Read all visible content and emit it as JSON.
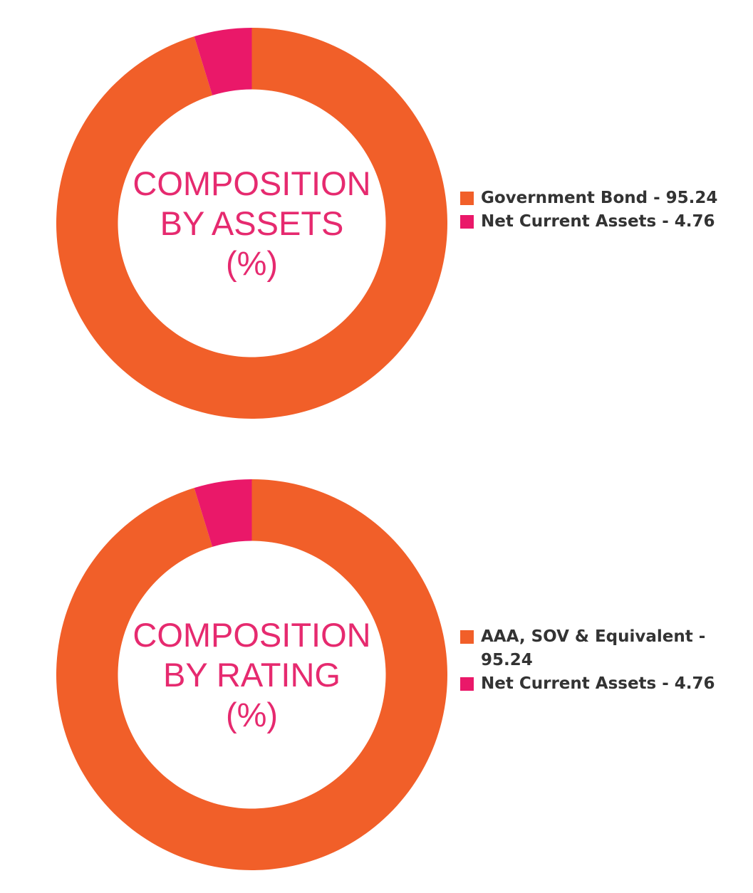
{
  "colors": {
    "orange": "#f15f29",
    "pink": "#ea1869",
    "title": "#e62a6f",
    "text": "#333333"
  },
  "chart_data": [
    {
      "type": "pie",
      "donut": true,
      "title_lines": [
        "COMPOSITION",
        "BY ASSETS",
        "(%)"
      ],
      "slices": [
        {
          "name": "Government Bond",
          "value": 95.24,
          "legend": "Government Bond - 95.24",
          "color": "#f15f29"
        },
        {
          "name": "Net Current Assets",
          "value": 4.76,
          "legend": "Net Current Assets - 4.76",
          "color": "#ea1869"
        }
      ],
      "legend_position": "right"
    },
    {
      "type": "pie",
      "donut": true,
      "title_lines": [
        "COMPOSITION",
        "BY RATING",
        "(%)"
      ],
      "slices": [
        {
          "name": "AAA, SOV & Equivalent",
          "value": 95.24,
          "legend": "AAA, SOV & Equivalent - 95.24",
          "color": "#f15f29"
        },
        {
          "name": "Net Current Assets",
          "value": 4.76,
          "legend": "Net Current Assets - 4.76",
          "color": "#ea1869"
        }
      ],
      "legend_position": "right"
    }
  ]
}
